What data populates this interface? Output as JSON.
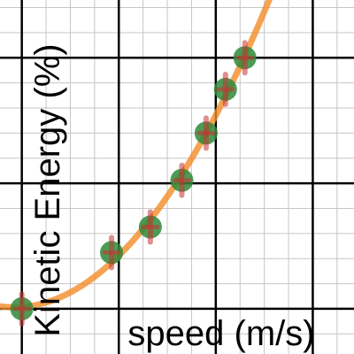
{
  "chart_data": {
    "type": "scatter",
    "title": "",
    "xlabel": "speed (m/s)",
    "ylabel": "Kinetic Energy (%)",
    "x": [
      0,
      1.85,
      2.65,
      3.3,
      3.8,
      4.2,
      4.6
    ],
    "y": [
      0,
      11.2,
      16.3,
      25.6,
      35.0,
      43.7,
      50.0
    ],
    "xlim": [
      -0.45,
      6.85
    ],
    "ylim": [
      -9.0,
      61.5
    ],
    "grid": true,
    "fit_curve": "quadratic",
    "colors": {
      "background": "#ffffff",
      "grid": "#c6c6c6",
      "axis": "#000000",
      "fit_line": "#f28c28",
      "point_fill": "#2d8a39",
      "error_bar": "#c83232"
    }
  }
}
